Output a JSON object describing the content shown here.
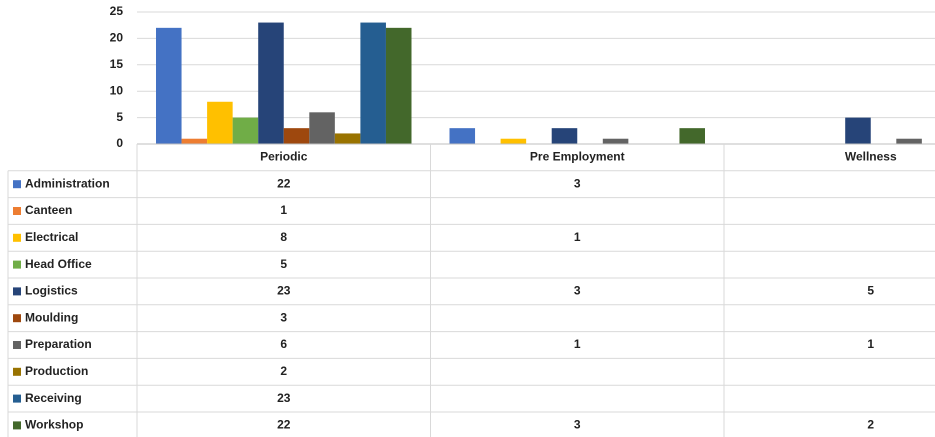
{
  "chart_data": {
    "type": "bar",
    "categories": [
      "Periodic",
      "Pre Employment",
      "Wellness"
    ],
    "series": [
      {
        "name": "Administration",
        "color": "#4472c4",
        "values": [
          22,
          3,
          null
        ]
      },
      {
        "name": "Canteen",
        "color": "#ed7d31",
        "values": [
          1,
          null,
          null
        ]
      },
      {
        "name": "Electrical",
        "color": "#ffc000",
        "values": [
          8,
          1,
          null
        ]
      },
      {
        "name": "Head Office",
        "color": "#70ad47",
        "values": [
          5,
          null,
          null
        ]
      },
      {
        "name": "Logistics",
        "color": "#264478",
        "values": [
          23,
          3,
          5
        ]
      },
      {
        "name": "Moulding",
        "color": "#9e480e",
        "values": [
          3,
          null,
          null
        ]
      },
      {
        "name": "Preparation",
        "color": "#636363",
        "values": [
          6,
          1,
          1
        ]
      },
      {
        "name": "Production",
        "color": "#997300",
        "values": [
          2,
          null,
          null
        ]
      },
      {
        "name": "Receiving",
        "color": "#255e91",
        "values": [
          23,
          null,
          null
        ]
      },
      {
        "name": "Workshop",
        "color": "#43682b",
        "values": [
          22,
          3,
          2
        ]
      }
    ],
    "ylim": [
      0,
      25
    ],
    "yticks": [
      0,
      5,
      10,
      15,
      20,
      25
    ],
    "grid": true
  }
}
